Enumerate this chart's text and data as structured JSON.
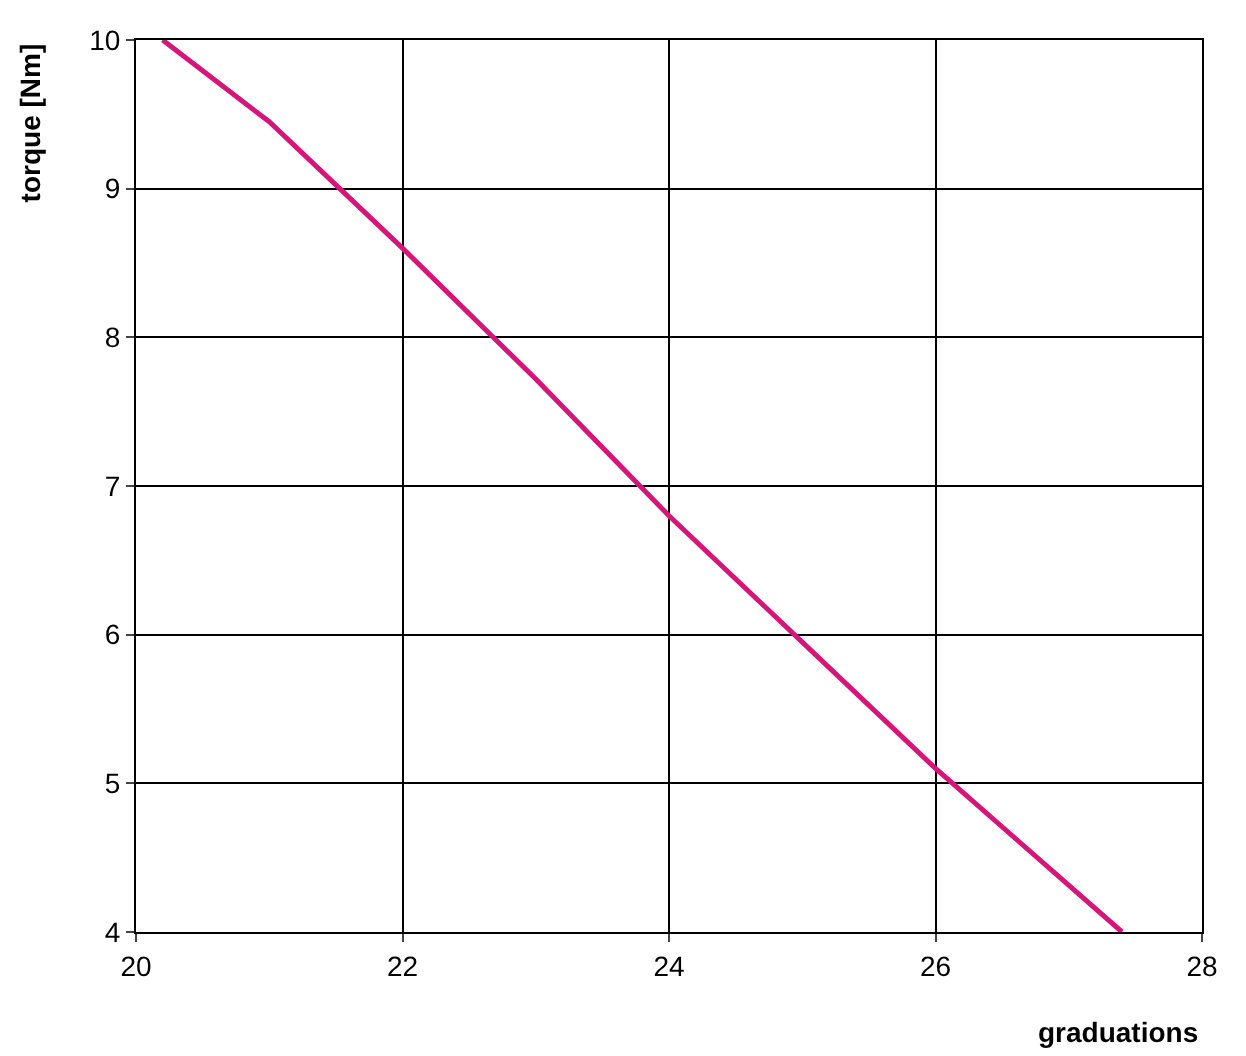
{
  "chart_data": {
    "type": "line",
    "xlabel": "graduations",
    "ylabel": "torque [Nm]",
    "x": [
      20.2,
      21,
      22,
      23,
      24,
      25,
      26,
      27.4
    ],
    "series": [
      {
        "color": "#d4157a",
        "values": [
          10,
          9.45,
          8.6,
          7.72,
          6.8,
          5.95,
          5.1,
          4
        ]
      }
    ],
    "xlim": [
      20,
      28
    ],
    "xticks": [
      20,
      22,
      24,
      26,
      28
    ],
    "ylim": [
      4,
      10
    ],
    "yticks": [
      4,
      5,
      6,
      7,
      8,
      9,
      10
    ],
    "grid": true,
    "legend": false,
    "marker": "none",
    "line_style": "solid"
  }
}
